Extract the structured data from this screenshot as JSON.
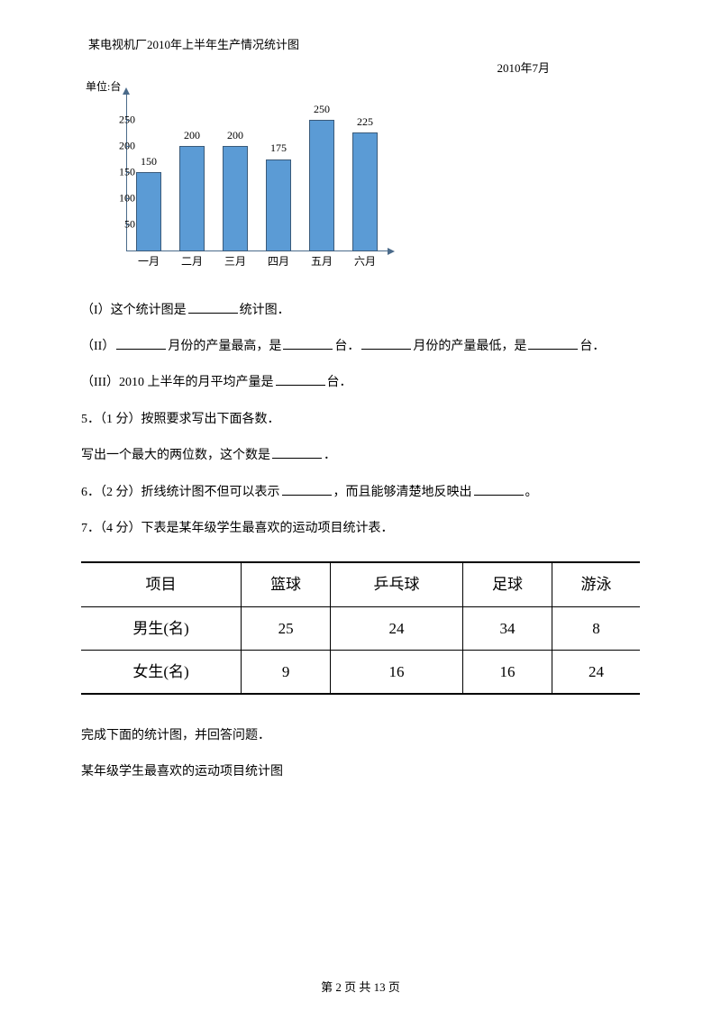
{
  "chart": {
    "title": "某电视机厂2010年上半年生产情况统计图",
    "subtitle": "2010年7月",
    "y_axis_label": "单位:台",
    "y_ticks": [
      50,
      100,
      150,
      200,
      250
    ],
    "y_max": 300,
    "bar_color": "#5b9bd5",
    "bar_border": "#3a5a7a",
    "axis_color": "#4a6a8a",
    "categories": [
      "一月",
      "二月",
      "三月",
      "四月",
      "五月",
      "六月"
    ],
    "values": [
      150,
      200,
      200,
      175,
      250,
      225
    ]
  },
  "questions": {
    "q_i": "（I）这个统计图是",
    "q_i_suffix": "统计图．",
    "q_ii_a": "（II）",
    "q_ii_b": "月份的产量最高，是",
    "q_ii_c": "台．",
    "q_ii_d": "月份的产量最低，是",
    "q_ii_e": "台．",
    "q_iii_a": "（III）2010 上半年的月平均产量是",
    "q_iii_b": "台．",
    "q5": "5．（1 分）按照要求写出下面各数．",
    "q5_sub": "写出一个最大的两位数，这个数是",
    "period": "．",
    "q6_a": "6．（2 分）折线统计图不但可以表示",
    "q6_b": "，而且能够清楚地反映出",
    "q6_c": "。",
    "q7": "7．（4 分）下表是某年级学生最喜欢的运动项目统计表．",
    "q7_sub1": "完成下面的统计图，并回答问题．",
    "q7_sub2": "某年级学生最喜欢的运动项目统计图"
  },
  "table": {
    "headers": [
      "项目",
      "篮球",
      "乒乓球",
      "足球",
      "游泳"
    ],
    "rows": [
      [
        "男生(名)",
        "25",
        "24",
        "34",
        "8"
      ],
      [
        "女生(名)",
        "9",
        "16",
        "16",
        "24"
      ]
    ]
  },
  "footer": {
    "prefix": "第 ",
    "page": "2",
    "mid": " 页 共 ",
    "total": "13",
    "suffix": " 页"
  }
}
